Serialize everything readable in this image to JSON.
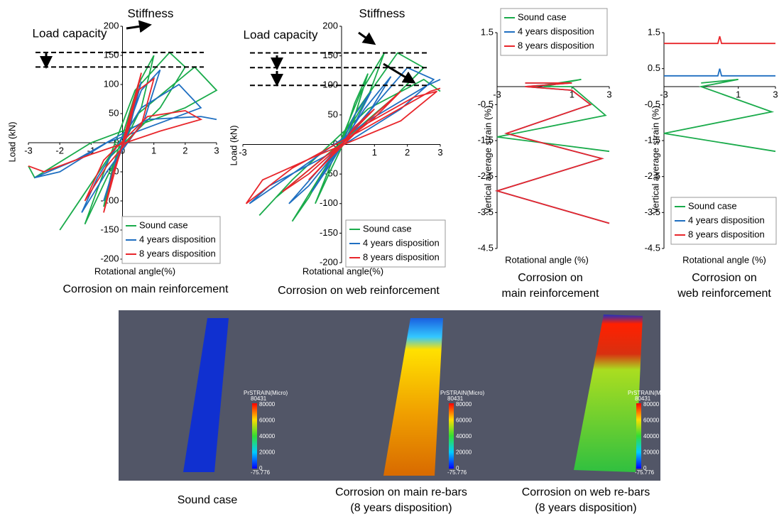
{
  "chart_data": [
    {
      "type": "line",
      "xlabel": "Rotational angle(%)",
      "ylabel": "Load (kN)",
      "caption": [
        "Corrosion on main reinforcement"
      ],
      "annotations": [
        "Stiffness",
        "Load capacity"
      ],
      "hlines": [
        155,
        130
      ],
      "xlim": [
        -3,
        3
      ],
      "ylim": [
        -200,
        200
      ],
      "xticks": [
        -3,
        -2,
        -1,
        0,
        1,
        2,
        3
      ],
      "yticks": [
        -200,
        -150,
        -100,
        -50,
        0,
        50,
        100,
        150,
        200
      ],
      "series": [
        {
          "name": "Sound case",
          "color": "#1aab4b",
          "x": [
            0,
            0.3,
            0.5,
            0.2,
            -0.3,
            -0.6,
            -0.3,
            0.5,
            1.0,
            0.6,
            -0.5,
            -1.2,
            -0.8,
            0.4,
            1.5,
            2.0,
            1.2,
            -0.5,
            -2.0,
            -1.5,
            0.5,
            2.3,
            3.0,
            2.0,
            -1.0,
            -2.8,
            -3.0
          ],
          "values": [
            0,
            60,
            100,
            20,
            -50,
            -110,
            -40,
            100,
            150,
            60,
            -60,
            -140,
            -80,
            90,
            155,
            130,
            60,
            -30,
            -150,
            -110,
            50,
            130,
            90,
            60,
            0,
            -60,
            -40
          ]
        },
        {
          "name": "4 years disposition",
          "color": "#1f6fc1",
          "x": [
            0,
            0.3,
            0.6,
            0.2,
            -0.3,
            -0.6,
            -0.2,
            0.6,
            1.2,
            0.7,
            -0.5,
            -1.3,
            -0.8,
            0.6,
            1.8,
            2.5,
            1.5,
            -0.5,
            -2.0,
            -2.8,
            -1.5,
            0.8,
            2.5,
            3.0
          ],
          "values": [
            0,
            50,
            105,
            20,
            -50,
            -100,
            -30,
            90,
            125,
            40,
            -50,
            -120,
            -60,
            60,
            100,
            60,
            40,
            0,
            -50,
            -60,
            -30,
            40,
            45,
            40
          ]
        },
        {
          "name": "8 years disposition",
          "color": "#e8262b",
          "x": [
            0,
            0.3,
            0.6,
            0.2,
            -0.3,
            -0.6,
            -0.2,
            0.5,
            1.0,
            0.6,
            -0.5,
            -1.2,
            -0.6,
            0.8,
            2.0,
            2.5,
            1.2,
            -1.0,
            -2.5,
            -3.0
          ],
          "values": [
            0,
            60,
            120,
            25,
            -50,
            -120,
            -40,
            90,
            110,
            30,
            -40,
            -100,
            -30,
            45,
            55,
            40,
            20,
            -20,
            -50,
            -40
          ]
        }
      ]
    },
    {
      "type": "line",
      "xlabel": "Rotational angle(%)",
      "ylabel": "Load (kN)",
      "caption": [
        "Corrosion on web reinforcement"
      ],
      "annotations": [
        "Stiffness",
        "Load capacity"
      ],
      "hlines": [
        155,
        130,
        100
      ],
      "xlim": [
        -3,
        3
      ],
      "ylim": [
        -200,
        200
      ],
      "xticks": [
        -3,
        1,
        2,
        3
      ],
      "yticks": [
        -200,
        -150,
        -100,
        -50,
        0,
        50,
        100,
        150,
        200
      ],
      "series": [
        {
          "name": "Sound case",
          "color": "#1aab4b",
          "x": [
            0,
            0.4,
            0.8,
            0.3,
            -0.3,
            -0.8,
            -0.3,
            0.6,
            1.3,
            0.8,
            -0.5,
            -1.5,
            -1.0,
            0.5,
            1.7,
            2.5,
            1.6,
            -0.5,
            -2.0,
            -2.5,
            -1.5,
            0.8,
            2.5,
            3.0
          ],
          "values": [
            0,
            70,
            120,
            30,
            -40,
            -100,
            -30,
            90,
            155,
            80,
            -40,
            -130,
            -90,
            60,
            155,
            130,
            80,
            -20,
            -90,
            -120,
            -60,
            60,
            110,
            90
          ]
        },
        {
          "name": "4 years disposition",
          "color": "#1f6fc1",
          "x": [
            0,
            0.4,
            0.9,
            0.3,
            -0.3,
            -0.9,
            -0.3,
            0.7,
            1.5,
            0.9,
            -0.5,
            -1.6,
            -1.0,
            0.6,
            2.0,
            2.8,
            1.8,
            -0.5,
            -2.2,
            -2.8,
            -1.5,
            0.8,
            2.6,
            3.0
          ],
          "values": [
            0,
            50,
            90,
            25,
            -30,
            -80,
            -25,
            60,
            115,
            60,
            -30,
            -100,
            -70,
            40,
            130,
            110,
            60,
            -20,
            -70,
            -100,
            -50,
            40,
            100,
            110
          ]
        },
        {
          "name": "8 years disposition",
          "color": "#e8262b",
          "x": [
            0,
            0.4,
            1.0,
            0.3,
            -0.4,
            -1.0,
            -0.3,
            0.8,
            1.8,
            1.0,
            -0.6,
            -1.8,
            -1.0,
            0.6,
            2.2,
            2.9,
            1.8,
            -0.8,
            -2.4,
            -2.9,
            -1.5,
            0.8,
            2.7,
            3.0
          ],
          "values": [
            0,
            30,
            60,
            20,
            -25,
            -60,
            -20,
            40,
            90,
            45,
            -25,
            -80,
            -50,
            30,
            80,
            90,
            40,
            -20,
            -60,
            -100,
            -40,
            30,
            90,
            95
          ]
        }
      ]
    },
    {
      "type": "line",
      "xlabel": "Rotational angle (%)",
      "ylabel": "Vertical average strain (%)",
      "caption": [
        "Corrosion on",
        "main reinforcement"
      ],
      "xlim": [
        -3,
        3
      ],
      "ylim": [
        -4.5,
        1.5
      ],
      "xticks": [
        -3,
        1,
        3
      ],
      "yticks": [
        1.5,
        -0.5,
        -1.5,
        -2.5,
        -3.5,
        -4.5
      ],
      "series": [
        {
          "name": "Sound case",
          "color": "#1aab4b",
          "x": [
            -1,
            1.5,
            -0.5,
            1,
            2.8,
            -3,
            3
          ],
          "values": [
            0,
            0.2,
            0,
            0,
            -0.8,
            -1.4,
            -1.8
          ]
        },
        {
          "name": "4 years disposition",
          "color": "#1f6fc1",
          "x": [
            -1.5,
            1,
            -1.5,
            1,
            2,
            -2.5,
            2.6,
            -3,
            3
          ],
          "values": [
            0.1,
            0.1,
            0,
            -0.1,
            -0.5,
            -1.3,
            -2.0,
            -2.9,
            -3.8
          ]
        },
        {
          "name": "8 years disposition",
          "color": "#e8262b",
          "x": [
            -1.5,
            1,
            -1.5,
            1,
            2,
            -2.5,
            2.6,
            -3,
            3
          ],
          "values": [
            0.1,
            0.1,
            0,
            -0.1,
            -0.5,
            -1.3,
            -2.0,
            -2.9,
            -3.8
          ]
        }
      ]
    },
    {
      "type": "line",
      "xlabel": "Rotational angle (%)",
      "ylabel": "Vertical average strain (%)",
      "caption": [
        "Corrosion on",
        "web reinforcement"
      ],
      "xlim": [
        -3,
        3
      ],
      "ylim": [
        -4.5,
        1.5
      ],
      "xticks": [
        -3,
        1,
        3
      ],
      "yticks": [
        1.5,
        0.5,
        -0.5,
        -1.5,
        -2.5,
        -3.5,
        -4.5
      ],
      "series": [
        {
          "name": "Sound case",
          "color": "#1aab4b",
          "x": [
            -1,
            1,
            -1,
            2.8,
            -3,
            3
          ],
          "values": [
            0.1,
            0.2,
            0,
            -0.7,
            -1.3,
            -1.8
          ]
        },
        {
          "name": "4 years disposition",
          "color": "#1f6fc1",
          "x": [
            -3,
            -0.1,
            0,
            0.1,
            3
          ],
          "values": [
            0.3,
            0.3,
            0.5,
            0.3,
            0.3
          ]
        },
        {
          "name": "8 years disposition",
          "color": "#e8262b",
          "x": [
            -3,
            -0.1,
            0,
            0.1,
            3
          ],
          "values": [
            1.2,
            1.2,
            1.4,
            1.2,
            1.2
          ]
        }
      ]
    }
  ],
  "simulations": {
    "colorbar": {
      "title": "PrSTRAIN(Micro)",
      "labels": [
        "80431",
        "80000",
        "60000",
        "40000",
        "20000",
        "0",
        "-75.776"
      ]
    },
    "panels": [
      {
        "caption": [
          "Sound case"
        ]
      },
      {
        "caption": [
          "Corrosion on main re-bars",
          "(8 years disposition)"
        ]
      },
      {
        "caption": [
          "Corrosion on web re-bars",
          "(8 years disposition)"
        ]
      }
    ]
  }
}
